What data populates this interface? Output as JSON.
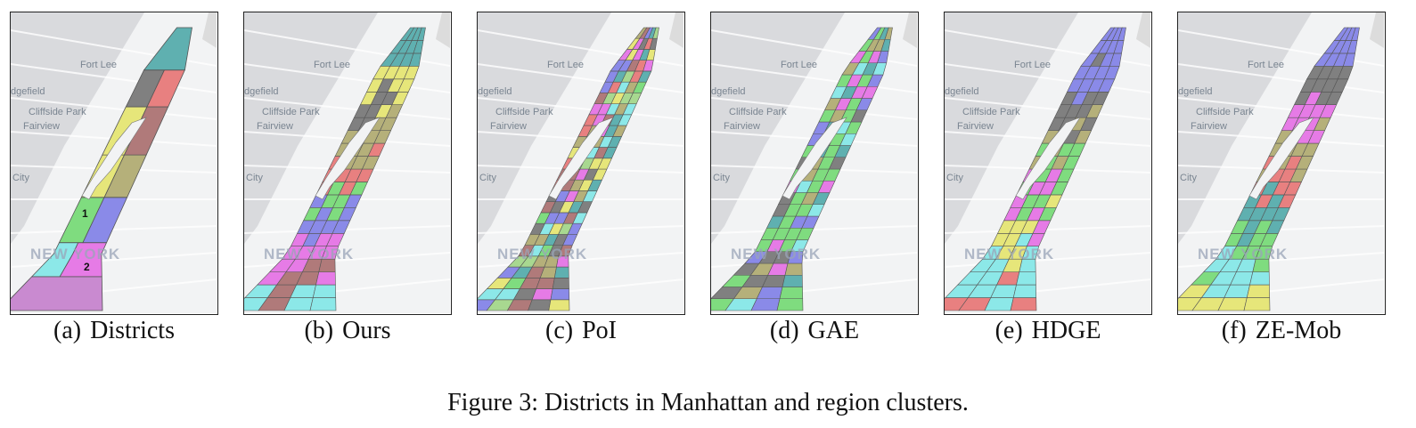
{
  "map_labels": {
    "fort_lee": "Fort Lee",
    "ridgefield": "dgefield",
    "cliffside": "Cliffside Park",
    "fairview": "Fairview",
    "city": "City",
    "new_york": "NEW YORK"
  },
  "district_numbers": [
    "1",
    "2"
  ],
  "panels": [
    {
      "label": "(a)",
      "name": "Districts"
    },
    {
      "label": "(b)",
      "name": "Ours"
    },
    {
      "label": "(c)",
      "name": "PoI"
    },
    {
      "label": "(d)",
      "name": "GAE"
    },
    {
      "label": "(e)",
      "name": "HDGE"
    },
    {
      "label": "(f)",
      "name": "ZE-Mob"
    }
  ],
  "cluster_colors": [
    "#7fdc7f",
    "#8a8ae8",
    "#e88080",
    "#b5b07a",
    "#e67be6",
    "#8ce8e8",
    "#e6e67a",
    "#808080",
    "#5fb0b0",
    "#b07a7a",
    "#a8d890"
  ],
  "figure_caption": "Figure 3: Districts in Manhattan and region clusters."
}
